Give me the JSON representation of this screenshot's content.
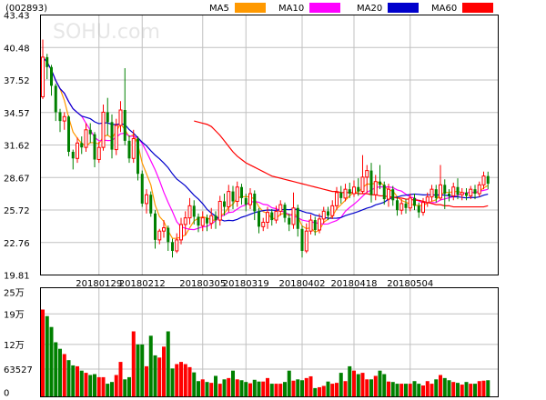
{
  "chart_data": {
    "type": "candlestick",
    "stock_code": "(002893)",
    "watermark": "SOHU.com",
    "legend": [
      {
        "name": "MA5",
        "color": "#ff9900"
      },
      {
        "name": "MA10",
        "color": "#ff00ff"
      },
      {
        "name": "MA20",
        "color": "#0000cc"
      },
      {
        "name": "MA60",
        "color": "#ff0000"
      }
    ],
    "colors": {
      "up": "#ff0000",
      "down": "#008000",
      "grid": "#c0c0c0"
    },
    "price_axis": {
      "ylim": [
        19.81,
        43.43
      ],
      "ticks": [
        "43.43",
        "40.48",
        "37.52",
        "34.57",
        "31.62",
        "28.67",
        "25.72",
        "22.76",
        "19.81"
      ]
    },
    "date_labels": [
      "20180129",
      "20180212",
      "20180305",
      "20180319",
      "20180402",
      "20180418",
      "20180504"
    ],
    "candles": [
      [
        36.0,
        39.6,
        41.2,
        35.8
      ],
      [
        39.6,
        38.7,
        39.9,
        37.6
      ],
      [
        38.7,
        37.0,
        38.9,
        36.1
      ],
      [
        37.0,
        34.6,
        37.2,
        33.8
      ],
      [
        34.6,
        33.8,
        34.9,
        32.8
      ],
      [
        33.8,
        34.2,
        34.6,
        33.0
      ],
      [
        34.2,
        31.0,
        34.3,
        30.6
      ],
      [
        31.0,
        30.4,
        31.2,
        29.4
      ],
      [
        30.4,
        31.8,
        32.3,
        30.0
      ],
      [
        31.8,
        31.4,
        32.4,
        30.8
      ],
      [
        31.4,
        33.0,
        33.6,
        31.0
      ],
      [
        33.0,
        32.6,
        33.6,
        31.8
      ],
      [
        32.6,
        30.3,
        32.8,
        29.6
      ],
      [
        30.3,
        31.4,
        31.9,
        30.0
      ],
      [
        31.4,
        34.6,
        35.3,
        31.1
      ],
      [
        34.6,
        33.7,
        35.9,
        32.5
      ],
      [
        33.7,
        31.2,
        34.4,
        30.4
      ],
      [
        31.2,
        33.4,
        34.0,
        30.7
      ],
      [
        33.4,
        34.8,
        35.6,
        32.8
      ],
      [
        34.8,
        32.0,
        38.6,
        31.6
      ],
      [
        32.0,
        30.4,
        32.5,
        30.0
      ],
      [
        30.4,
        32.2,
        33.0,
        30.0
      ],
      [
        32.2,
        29.0,
        32.4,
        28.4
      ],
      [
        29.0,
        26.3,
        29.3,
        26.0
      ],
      [
        26.3,
        27.1,
        27.6,
        25.4
      ],
      [
        27.1,
        25.4,
        27.4,
        25.1
      ],
      [
        25.4,
        23.0,
        25.7,
        22.2
      ],
      [
        23.0,
        23.8,
        24.0,
        22.6
      ],
      [
        23.8,
        24.1,
        24.8,
        23.2
      ],
      [
        24.1,
        22.8,
        24.3,
        22.0
      ],
      [
        22.8,
        22.0,
        23.1,
        21.4
      ],
      [
        22.0,
        23.0,
        23.6,
        21.8
      ],
      [
        23.0,
        24.4,
        25.0,
        22.6
      ],
      [
        24.4,
        25.0,
        25.6,
        23.4
      ],
      [
        25.0,
        26.1,
        26.8,
        24.4
      ],
      [
        26.1,
        25.1,
        26.6,
        24.4
      ],
      [
        25.1,
        24.3,
        25.4,
        23.7
      ],
      [
        24.3,
        25.0,
        25.6,
        23.8
      ],
      [
        25.0,
        24.5,
        25.3,
        23.8
      ],
      [
        24.5,
        25.2,
        25.9,
        24.0
      ],
      [
        25.2,
        24.8,
        25.6,
        24.0
      ],
      [
        24.8,
        26.5,
        27.0,
        24.3
      ],
      [
        26.5,
        26.0,
        27.2,
        25.2
      ],
      [
        26.0,
        27.4,
        28.0,
        25.5
      ],
      [
        27.4,
        26.5,
        27.9,
        25.8
      ],
      [
        26.5,
        27.8,
        28.3,
        26.0
      ],
      [
        27.8,
        26.8,
        28.1,
        26.2
      ],
      [
        26.8,
        26.2,
        27.2,
        25.6
      ],
      [
        26.2,
        27.2,
        27.7,
        25.8
      ],
      [
        27.2,
        25.6,
        27.5,
        24.8
      ],
      [
        25.6,
        24.2,
        25.9,
        23.6
      ],
      [
        24.2,
        24.6,
        25.0,
        23.8
      ],
      [
        24.6,
        25.5,
        26.0,
        24.0
      ],
      [
        25.5,
        24.8,
        25.8,
        24.3
      ],
      [
        24.8,
        25.6,
        26.1,
        24.5
      ],
      [
        25.6,
        26.2,
        26.6,
        25.2
      ],
      [
        26.2,
        25.0,
        26.4,
        24.6
      ],
      [
        25.0,
        24.4,
        25.4,
        23.8
      ],
      [
        24.4,
        25.9,
        27.3,
        24.0
      ],
      [
        25.9,
        24.0,
        26.2,
        23.3
      ],
      [
        24.0,
        22.0,
        24.3,
        21.4
      ],
      [
        22.0,
        23.8,
        24.5,
        21.8
      ],
      [
        23.8,
        24.8,
        25.3,
        23.5
      ],
      [
        24.8,
        23.9,
        25.1,
        23.4
      ],
      [
        23.9,
        24.9,
        25.4,
        23.6
      ],
      [
        24.9,
        25.6,
        26.0,
        24.5
      ],
      [
        25.6,
        25.2,
        26.0,
        24.8
      ],
      [
        25.2,
        26.1,
        26.6,
        24.9
      ],
      [
        26.1,
        27.3,
        27.8,
        25.7
      ],
      [
        27.3,
        26.8,
        27.9,
        26.3
      ],
      [
        26.8,
        27.6,
        28.1,
        26.5
      ],
      [
        27.6,
        27.2,
        28.2,
        26.8
      ],
      [
        27.2,
        27.8,
        28.4,
        26.9
      ],
      [
        27.8,
        27.4,
        28.6,
        27.0
      ],
      [
        27.4,
        28.7,
        30.7,
        27.2
      ],
      [
        28.7,
        29.3,
        29.8,
        27.3
      ],
      [
        29.3,
        27.1,
        30.0,
        26.4
      ],
      [
        27.1,
        28.3,
        28.9,
        26.6
      ],
      [
        28.3,
        28.0,
        29.8,
        27.6
      ],
      [
        28.0,
        26.7,
        28.3,
        26.2
      ],
      [
        26.7,
        27.6,
        28.1,
        26.0
      ],
      [
        27.6,
        26.6,
        27.9,
        26.1
      ],
      [
        26.6,
        25.7,
        26.9,
        25.2
      ],
      [
        25.7,
        26.3,
        26.7,
        25.3
      ],
      [
        26.3,
        25.9,
        26.7,
        25.4
      ],
      [
        25.9,
        26.8,
        27.2,
        25.6
      ],
      [
        26.8,
        26.1,
        27.2,
        25.7
      ],
      [
        26.1,
        25.5,
        26.4,
        25.0
      ],
      [
        25.5,
        26.4,
        26.8,
        25.2
      ],
      [
        26.4,
        26.9,
        27.3,
        26.0
      ],
      [
        26.9,
        27.6,
        28.0,
        26.5
      ],
      [
        27.6,
        26.8,
        28.0,
        26.4
      ],
      [
        26.8,
        28.0,
        29.8,
        26.6
      ],
      [
        28.0,
        27.2,
        28.5,
        25.8
      ],
      [
        27.2,
        27.0,
        27.6,
        26.5
      ],
      [
        27.0,
        27.8,
        28.2,
        26.6
      ],
      [
        27.8,
        27.1,
        28.6,
        26.7
      ],
      [
        27.1,
        27.3,
        27.7,
        26.6
      ],
      [
        27.3,
        27.0,
        27.7,
        26.6
      ],
      [
        27.0,
        27.6,
        27.9,
        26.7
      ],
      [
        27.6,
        27.2,
        28.0,
        26.7
      ],
      [
        27.2,
        28.0,
        28.3,
        26.9
      ],
      [
        28.0,
        28.8,
        29.2,
        27.6
      ],
      [
        28.8,
        28.1,
        29.2,
        27.6
      ]
    ],
    "volume_axis": {
      "ylim": [
        0,
        250000
      ],
      "ticks": [
        {
          "label": "25万",
          "value": 250000
        },
        {
          "label": "19万",
          "value": 190000
        },
        {
          "label": "12万",
          "value": 120000
        },
        {
          "label": "63527",
          "value": 63527
        },
        {
          "label": "0",
          "value": 0
        }
      ]
    },
    "volumes": [
      200000,
      185000,
      160000,
      125000,
      110000,
      98000,
      84000,
      72000,
      70000,
      60000,
      55000,
      50000,
      52000,
      45000,
      45000,
      30000,
      34000,
      50000,
      80000,
      40000,
      45000,
      150000,
      120000,
      120000,
      70000,
      140000,
      95000,
      90000,
      115000,
      150000,
      65000,
      75000,
      80000,
      75000,
      68000,
      56000,
      36000,
      40000,
      34000,
      32000,
      48000,
      30000,
      40000,
      43000,
      60000,
      40000,
      38000,
      34000,
      31000,
      39000,
      35000,
      35000,
      43000,
      30000,
      30000,
      30000,
      34000,
      60000,
      37000,
      40000,
      38000,
      43000,
      47000,
      20000,
      22000,
      25000,
      35000,
      30000,
      32000,
      55000,
      36000,
      70000,
      60000,
      52000,
      55000,
      40000,
      40000,
      48000,
      60000,
      52000,
      35000,
      34000,
      30000,
      30000,
      30000,
      30000,
      36000,
      30000,
      26000,
      36000,
      30000,
      40000,
      50000,
      43000,
      38000,
      34000,
      32000,
      28000,
      34000,
      30000,
      30000,
      36000,
      37000,
      38000
    ],
    "ma_series": [
      {
        "name": "MA5",
        "color": "#ff9900"
      },
      {
        "name": "MA10",
        "color": "#ff00ff"
      },
      {
        "name": "MA20",
        "color": "#0000cc"
      },
      {
        "name": "MA60",
        "color": "#ff0000",
        "values": [
          33.8,
          33.7,
          33.6,
          33.5,
          33.3,
          32.9,
          32.5,
          32.0,
          31.5,
          31.0,
          30.6,
          30.3,
          30.0,
          29.8,
          29.6,
          29.4,
          29.2,
          29.0,
          28.8,
          28.7,
          28.6,
          28.5,
          28.4,
          28.3,
          28.2,
          28.1,
          28.0,
          27.9,
          27.8,
          27.7,
          27.6,
          27.5,
          27.4,
          27.4,
          27.3,
          27.3,
          27.3,
          27.3,
          27.2,
          27.2,
          27.2,
          27.1,
          27.1,
          27.0,
          27.0,
          26.9,
          26.9,
          26.8,
          26.8,
          26.7,
          26.7,
          26.6,
          26.6,
          26.5,
          26.4,
          26.3,
          26.2,
          26.2,
          26.1,
          26.1,
          26.0,
          26.0,
          26.0,
          26.0,
          26.0,
          26.0,
          26.0,
          26.0,
          26.1
        ]
      }
    ]
  }
}
